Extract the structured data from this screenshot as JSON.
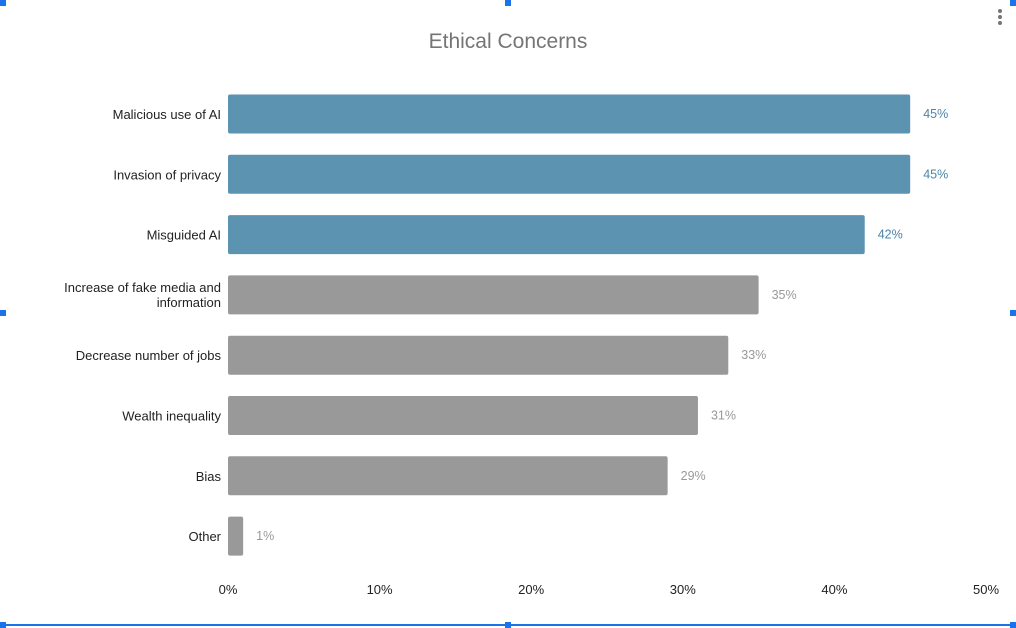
{
  "chart_data": {
    "type": "bar",
    "orientation": "horizontal",
    "title": "Ethical Concerns",
    "categories": [
      "Malicious use of AI",
      "Invasion of privacy",
      "Misguided AI",
      "Increase of fake media and information",
      "Decrease number of jobs",
      "Wealth inequality",
      "Bias",
      "Other"
    ],
    "values": [
      45,
      45,
      42,
      35,
      33,
      31,
      29,
      1
    ],
    "data_labels": [
      "45%",
      "45%",
      "42%",
      "35%",
      "33%",
      "31%",
      "29%",
      "1%"
    ],
    "highlighted": [
      true,
      true,
      true,
      false,
      false,
      false,
      false,
      false
    ],
    "xlim": [
      0,
      50
    ],
    "x_ticks": [
      0,
      10,
      20,
      30,
      40,
      50
    ],
    "x_tick_labels": [
      "0%",
      "10%",
      "20%",
      "30%",
      "40%",
      "50%"
    ],
    "grid": false,
    "colors": {
      "highlight": "#5b93b1",
      "default": "#999999",
      "highlight_label": "#4a86a8",
      "default_label": "#999999",
      "title": "#757575"
    }
  },
  "menu": {
    "icon": "more-vert-icon"
  }
}
